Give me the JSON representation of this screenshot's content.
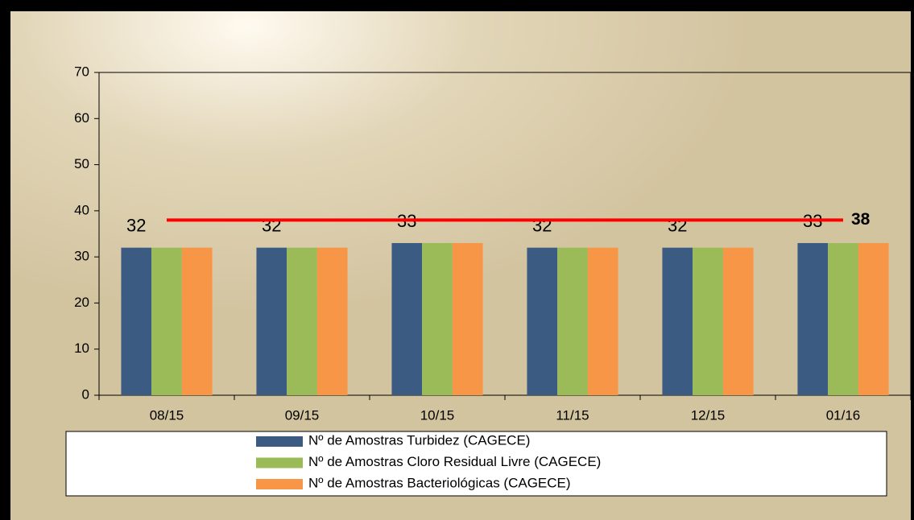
{
  "chart_data": {
    "type": "bar",
    "categories": [
      "08/15",
      "09/15",
      "10/15",
      "11/15",
      "12/15",
      "01/16"
    ],
    "series": [
      {
        "name": "Nº de Amostras Turbidez (CAGECE)",
        "color": "#3b5b82",
        "values": [
          32,
          32,
          33,
          32,
          32,
          33
        ]
      },
      {
        "name": "Nº de Amostras Cloro Residual Livre (CAGECE)",
        "color": "#9bbb59",
        "values": [
          32,
          32,
          33,
          32,
          32,
          33
        ]
      },
      {
        "name": "Nº de Amostras Bacteriológicas (CAGECE)",
        "color": "#f79646",
        "values": [
          32,
          32,
          33,
          32,
          32,
          33
        ]
      }
    ],
    "reference_line": {
      "value": 38,
      "color": "#ff0000"
    },
    "ylim": [
      0,
      70
    ],
    "yticks": [
      0,
      10,
      20,
      30,
      40,
      50,
      60,
      70
    ],
    "grid": false
  }
}
